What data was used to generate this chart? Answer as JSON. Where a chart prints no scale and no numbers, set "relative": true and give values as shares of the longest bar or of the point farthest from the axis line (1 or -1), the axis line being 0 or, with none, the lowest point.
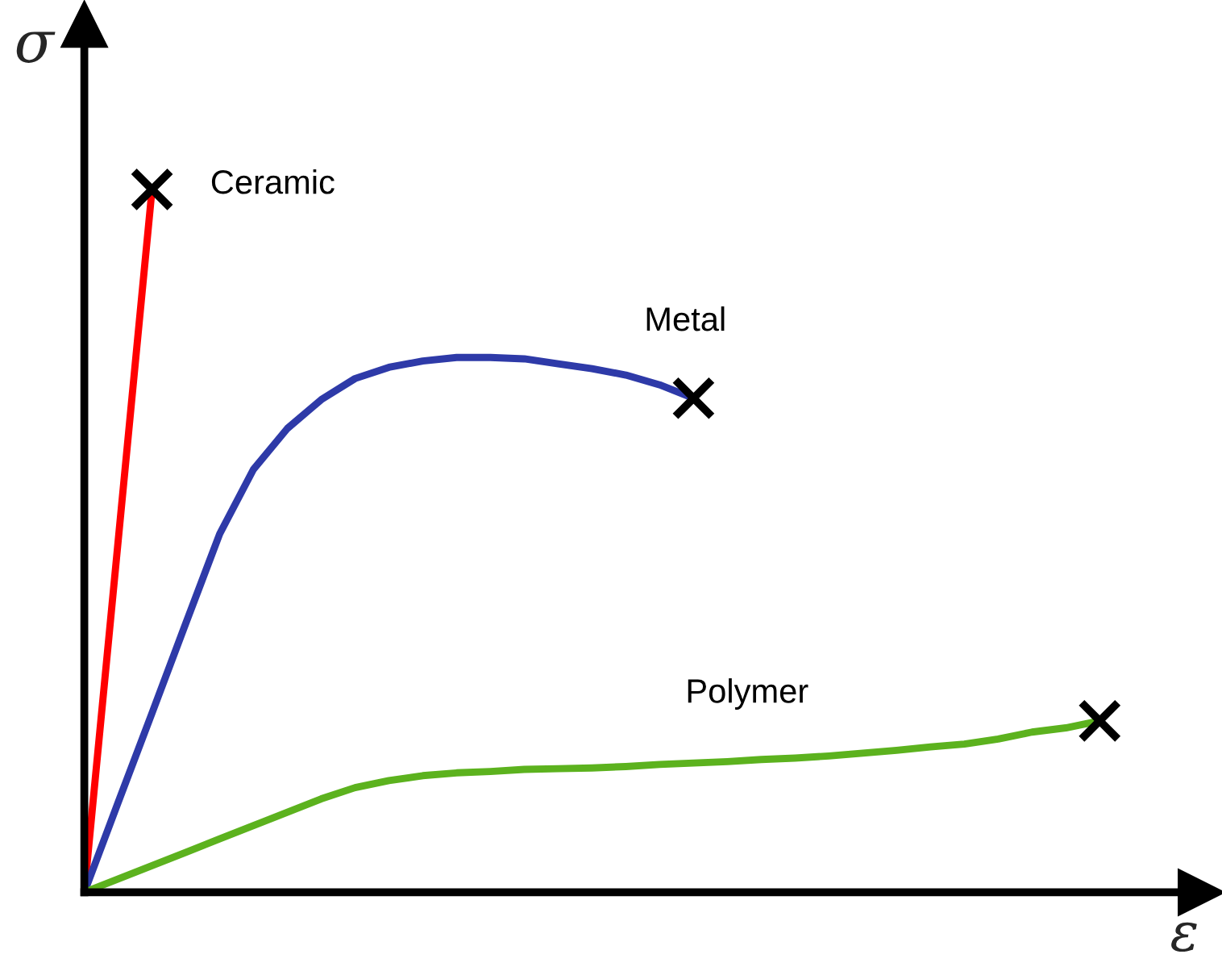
{
  "chart_data": {
    "type": "line",
    "relative": true,
    "xlabel": "ε",
    "ylabel": "σ",
    "categories": [
      null,
      null,
      null,
      null,
      null,
      null,
      null,
      null,
      null,
      null,
      null,
      null,
      null,
      null,
      null,
      null,
      null,
      null,
      null,
      null,
      null,
      null,
      null,
      null,
      null,
      null,
      null,
      null,
      null,
      null,
      null
    ],
    "series": [
      {
        "name": "Ceramic",
        "color": "#ff0000",
        "values": [
          0,
          0.5,
          1.0,
          null,
          null,
          null,
          null,
          null,
          null,
          null,
          null,
          null,
          null,
          null,
          null,
          null,
          null,
          null,
          null,
          null,
          null,
          null,
          null,
          null,
          null,
          null,
          null,
          null,
          null,
          null,
          null
        ]
      },
      {
        "name": "Metal",
        "color": "#2e3aa8",
        "values": [
          0,
          0.128,
          0.255,
          0.383,
          0.51,
          0.602,
          0.66,
          0.701,
          0.731,
          0.747,
          0.756,
          0.761,
          0.761,
          0.759,
          0.752,
          0.745,
          0.736,
          0.722,
          0.703,
          null,
          null,
          null,
          null,
          null,
          null,
          null,
          null,
          null,
          null,
          null,
          null
        ]
      },
      {
        "name": "Polymer",
        "color": "#5cb21e",
        "values": [
          0,
          0.019,
          0.038,
          0.057,
          0.076,
          0.095,
          0.114,
          0.133,
          0.149,
          0.159,
          0.166,
          0.17,
          0.172,
          0.175,
          0.176,
          0.177,
          0.179,
          0.182,
          0.184,
          0.186,
          0.189,
          0.191,
          0.194,
          0.198,
          0.202,
          0.207,
          0.211,
          0.218,
          0.228,
          0.234,
          0.244
        ]
      }
    ]
  }
}
